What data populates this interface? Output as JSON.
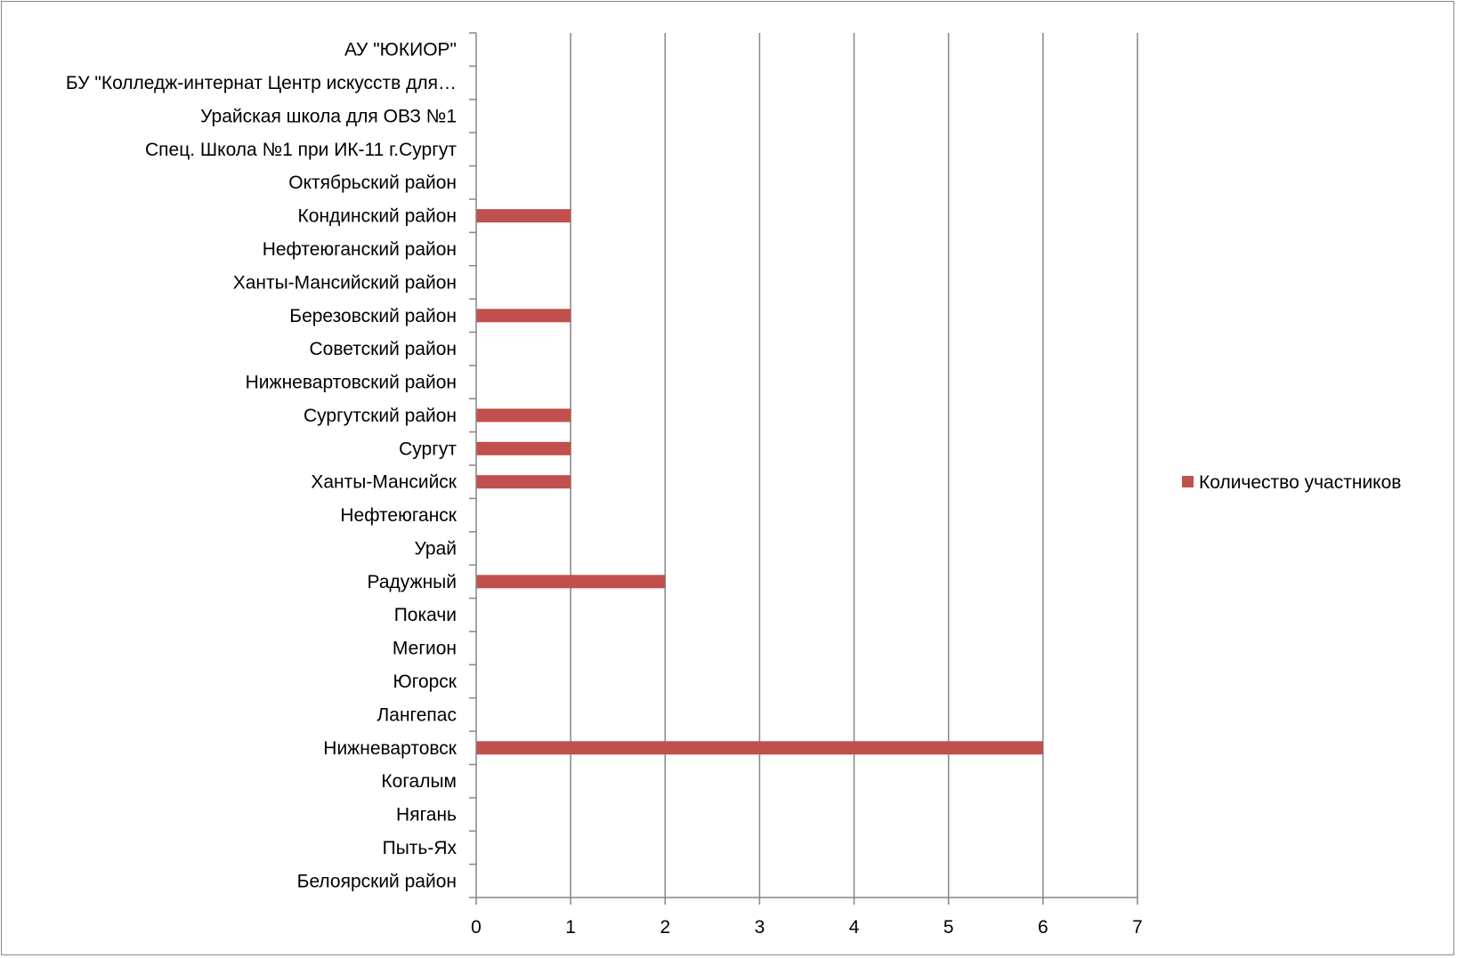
{
  "chart_data": {
    "type": "bar",
    "orientation": "horizontal",
    "categories": [
      "Белоярский район",
      "Пыть-Ях",
      "Нягань",
      "Когалым",
      "Нижневартовск",
      "Лангепас",
      "Югорск",
      "Мегион",
      "Покачи",
      "Радужный",
      "Урай",
      "Нефтеюганск",
      "Ханты-Мансийск",
      "Сургут",
      "Сургутский район",
      "Нижневартовский район",
      "Советский район",
      "Березовский район",
      "Ханты-Мансийский район",
      "Нефтеюганский район",
      "Кондинский район",
      "Октябрьский район",
      "Спец. Школа №1 при ИК-11 г.Сургут",
      "Урайская школа для ОВЗ №1",
      "БУ \"Колледж-интернат Центр искусств для…",
      "АУ \"ЮКИОР\""
    ],
    "series": [
      {
        "name": "Количество участников",
        "color": "#c0504d",
        "values": [
          0,
          0,
          0,
          0,
          6,
          0,
          0,
          0,
          0,
          2,
          0,
          0,
          1,
          1,
          1,
          0,
          0,
          1,
          0,
          0,
          1,
          0,
          0,
          0,
          0,
          0
        ]
      }
    ],
    "xlim": [
      0,
      7
    ],
    "xticks": [
      "0",
      "1",
      "2",
      "3",
      "4",
      "5",
      "6",
      "7"
    ],
    "grid": "vertical major",
    "legend": "right",
    "title": "",
    "xlabel": "",
    "ylabel": ""
  }
}
